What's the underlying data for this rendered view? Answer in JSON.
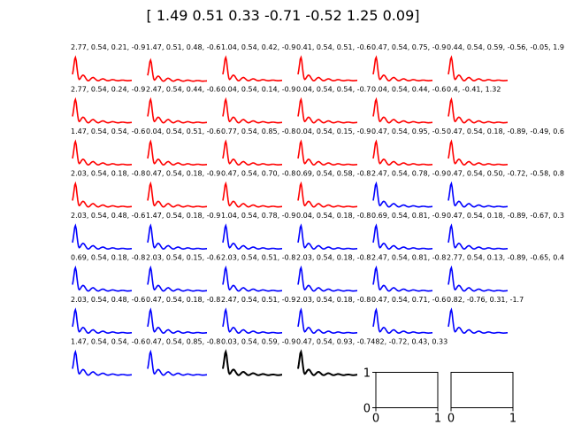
{
  "figure": {
    "suptitle": "[ 1.49  0.51  0.33 -0.71 -0.52  1.25  0.09]"
  },
  "chart_data": {
    "type": "line",
    "layout": {
      "rows": 7,
      "cols": 6
    },
    "colors": {
      "red": "#ff0000",
      "blue": "#0000ff",
      "black": "#000000"
    },
    "panels": [
      {
        "title": "2.77, 0.54, 0.21, -0.9",
        "color": "red",
        "peak": 1.0
      },
      {
        "title": "1.47, 0.51, 0.48, -0.6",
        "color": "red",
        "peak": 0.9
      },
      {
        "title": "1.04, 0.54, 0.42, -0.9",
        "color": "red",
        "peak": 1.0
      },
      {
        "title": "0.41, 0.54, 0.51, -0.6",
        "color": "red",
        "peak": 1.0
      },
      {
        "title": "0.47, 0.54, 0.75, -0.9",
        "color": "red",
        "peak": 1.0
      },
      {
        "title": "0.44, 0.54, 0.59, -0.56, -0.05, 1.9",
        "color": "red",
        "peak": 1.0
      },
      {
        "title": "2.77, 0.54, 0.24, -0.9",
        "color": "red",
        "peak": 1.0
      },
      {
        "title": "2.47, 0.54, 0.44, -0.6",
        "color": "red",
        "peak": 1.0
      },
      {
        "title": "0.04, 0.54, 0.14, -0.9",
        "color": "red",
        "peak": 1.0
      },
      {
        "title": "0.04, 0.54, 0.54, -0.7",
        "color": "red",
        "peak": 1.0
      },
      {
        "title": "0.04, 0.54, 0.44, -0.6",
        "color": "red",
        "peak": 1.0
      },
      {
        "title": "0.4, -0.41, 1.32",
        "color": "red",
        "peak": 1.0
      },
      {
        "title": "1.47, 0.54, 0.54, -0.6",
        "color": "red",
        "peak": 1.0
      },
      {
        "title": "0.04, 0.54, 0.51, -0.6",
        "color": "red",
        "peak": 1.0
      },
      {
        "title": "0.77, 0.54, 0.85, -0.8",
        "color": "red",
        "peak": 1.0
      },
      {
        "title": "0.04, 0.54, 0.15, -0.9",
        "color": "red",
        "peak": 1.0
      },
      {
        "title": "0.47, 0.54, 0.95, -0.5",
        "color": "red",
        "peak": 1.0
      },
      {
        "title": "0.47, 0.54, 0.18, -0.89, -0.49, 0.6",
        "color": "red",
        "peak": 1.0
      },
      {
        "title": "2.03, 0.54, 0.18, -0.8",
        "color": "red",
        "peak": 1.0
      },
      {
        "title": "0.47, 0.54, 0.18, -0.9",
        "color": "red",
        "peak": 1.0
      },
      {
        "title": "0.47, 0.54, 0.70, -0.8",
        "color": "red",
        "peak": 1.0
      },
      {
        "title": "0.69, 0.54, 0.58, -0.8",
        "color": "red",
        "peak": 1.0
      },
      {
        "title": "2.47, 0.54, 0.78, -0.9",
        "color": "blue",
        "peak": 1.0
      },
      {
        "title": "0.47, 0.54, 0.50, -0.72, -0.58, 0.8",
        "color": "blue",
        "peak": 1.0
      },
      {
        "title": "2.03, 0.54, 0.48, -0.6",
        "color": "blue",
        "peak": 1.0
      },
      {
        "title": "1.47, 0.54, 0.18, -0.9",
        "color": "blue",
        "peak": 1.0
      },
      {
        "title": "1.04, 0.54, 0.78, -0.9",
        "color": "blue",
        "peak": 1.0
      },
      {
        "title": "0.04, 0.54, 0.18, -0.8",
        "color": "blue",
        "peak": 1.0
      },
      {
        "title": "0.69, 0.54, 0.81, -0.9",
        "color": "blue",
        "peak": 1.0
      },
      {
        "title": "0.47, 0.54, 0.18, -0.89, -0.67, 0.3",
        "color": "blue",
        "peak": 1.0
      },
      {
        "title": "0.69, 0.54, 0.18, -0.8",
        "color": "blue",
        "peak": 1.0
      },
      {
        "title": "2.03, 0.54, 0.15, -0.6",
        "color": "blue",
        "peak": 1.0
      },
      {
        "title": "2.03, 0.54, 0.51, -0.8",
        "color": "blue",
        "peak": 1.0
      },
      {
        "title": "2.03, 0.54, 0.18, -0.8",
        "color": "blue",
        "peak": 1.0
      },
      {
        "title": "2.47, 0.54, 0.81, -0.8",
        "color": "blue",
        "peak": 1.0
      },
      {
        "title": "2.77, 0.54, 0.13, -0.89, -0.65, 0.4",
        "color": "blue",
        "peak": 1.0
      },
      {
        "title": "2.03, 0.54, 0.48, -0.6",
        "color": "blue",
        "peak": 1.0
      },
      {
        "title": "0.47, 0.54, 0.18, -0.8",
        "color": "blue",
        "peak": 1.0
      },
      {
        "title": "2.47, 0.54, 0.51, -0.9",
        "color": "blue",
        "peak": 1.0
      },
      {
        "title": "2.03, 0.54, 0.18, -0.8",
        "color": "blue",
        "peak": 1.0
      },
      {
        "title": "0.47, 0.54, 0.71, -0.6",
        "color": "blue",
        "peak": 1.0
      },
      {
        "title": "0.82, -0.76, 0.31, -1.7",
        "color": "blue",
        "peak": 1.0
      },
      {
        "title": "1.47, 0.54, 0.54, -0.6",
        "color": "blue",
        "peak": 1.0
      },
      {
        "title": "0.47, 0.54, 0.85, -0.8",
        "color": "blue",
        "peak": 1.0
      },
      {
        "title": "0.03, 0.54, 0.59, -0.9",
        "color": "black",
        "peak": 1.0
      },
      {
        "title": "0.47, 0.54, 0.93, -0.7482, -0.72, 0.43, 0.33",
        "color": "black",
        "peak": 1.0
      },
      {
        "title": "",
        "color": "empty",
        "xticks": [
          "0",
          "1"
        ],
        "yticks": [
          "0",
          "1"
        ]
      },
      {
        "title": "",
        "color": "empty",
        "xticks": [
          "0",
          "1"
        ],
        "yticks": []
      }
    ]
  }
}
